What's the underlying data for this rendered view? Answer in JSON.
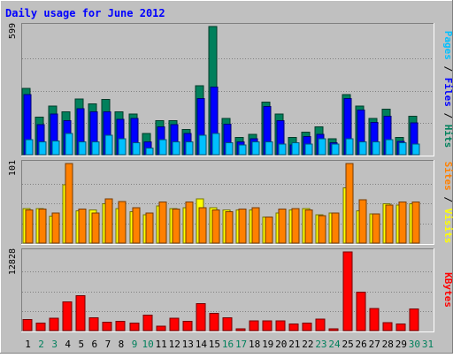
{
  "title": "Daily usage for June 2012",
  "colors": {
    "background": "#c0c0c0",
    "frame_light": "#ffffff",
    "frame_dark": "#808080",
    "title": "#0000ff",
    "hits": "#00805c",
    "files": "#0000ff",
    "pages": "#00c0ff",
    "visits": "#ffff00",
    "sites": "#ff8000",
    "kbytes": "#ff0000",
    "day_weekday": "#000000",
    "day_weekend": "#00805c"
  },
  "chart_data": [
    {
      "type": "bar",
      "name": "hits-files-pages",
      "ylabel_parts": [
        {
          "text": "Pages",
          "color_key": "pages"
        },
        {
          "text": " / ",
          "color_key": "day_weekday"
        },
        {
          "text": "Files",
          "color_key": "files"
        },
        {
          "text": " / ",
          "color_key": "day_weekday"
        },
        {
          "text": "Hits",
          "color_key": "hits"
        }
      ],
      "max_label": "599",
      "ylim": [
        0,
        599
      ],
      "categories": [
        "1",
        "2",
        "3",
        "4",
        "5",
        "6",
        "7",
        "8",
        "9",
        "10",
        "11",
        "12",
        "13",
        "14",
        "15",
        "16",
        "17",
        "18",
        "19",
        "20",
        "21",
        "22",
        "23",
        "24",
        "25",
        "26",
        "27",
        "28",
        "29",
        "30",
        "31"
      ],
      "series": [
        {
          "name": "Hits",
          "color_key": "hits",
          "values": [
            310,
            175,
            228,
            200,
            260,
            238,
            258,
            200,
            190,
            100,
            160,
            160,
            118,
            322,
            599,
            170,
            80,
            95,
            245,
            190,
            80,
            105,
            130,
            75,
            280,
            228,
            170,
            212,
            80,
            180,
            0
          ]
        },
        {
          "name": "Files",
          "color_key": "files",
          "values": [
            280,
            140,
            190,
            160,
            215,
            200,
            200,
            165,
            170,
            60,
            130,
            140,
            100,
            262,
            315,
            142,
            60,
            75,
            225,
            160,
            45,
            85,
            95,
            55,
            262,
            208,
            150,
            180,
            62,
            148,
            0
          ]
        },
        {
          "name": "Pages",
          "color_key": "pages",
          "values": [
            70,
            60,
            65,
            100,
            60,
            60,
            90,
            75,
            55,
            32,
            70,
            60,
            60,
            90,
            100,
            55,
            45,
            60,
            60,
            50,
            55,
            50,
            75,
            50,
            75,
            60,
            60,
            70,
            55,
            50,
            0
          ]
        }
      ]
    },
    {
      "type": "bar",
      "name": "visits-sites",
      "ylabel_parts": [
        {
          "text": "Sites",
          "color_key": "sites"
        },
        {
          "text": " / ",
          "color_key": "day_weekday"
        },
        {
          "text": "Visits",
          "color_key": "visits"
        }
      ],
      "max_label": "101",
      "ylim": [
        0,
        101
      ],
      "categories": [
        "1",
        "2",
        "3",
        "4",
        "5",
        "6",
        "7",
        "8",
        "9",
        "10",
        "11",
        "12",
        "13",
        "14",
        "15",
        "16",
        "17",
        "18",
        "19",
        "20",
        "21",
        "22",
        "23",
        "24",
        "25",
        "26",
        "27",
        "28",
        "29",
        "30",
        "31"
      ],
      "series": [
        {
          "name": "Visits",
          "color_key": "visits",
          "values": [
            44,
            44,
            34,
            74,
            41,
            42,
            50,
            44,
            40,
            36,
            47,
            44,
            45,
            56,
            45,
            42,
            42,
            42,
            33,
            38,
            42,
            44,
            36,
            38,
            70,
            41,
            37,
            50,
            48,
            50,
            0
          ]
        },
        {
          "name": "Sites",
          "color_key": "sites",
          "values": [
            42,
            43,
            38,
            101,
            43,
            38,
            56,
            53,
            45,
            38,
            52,
            43,
            52,
            45,
            42,
            40,
            43,
            45,
            33,
            43,
            44,
            42,
            35,
            38,
            101,
            55,
            37,
            48,
            52,
            52,
            0
          ]
        }
      ]
    },
    {
      "type": "bar",
      "name": "kbytes",
      "ylabel_parts": [
        {
          "text": "KBytes",
          "color_key": "kbytes"
        }
      ],
      "max_label": "12828",
      "ylim": [
        0,
        12828
      ],
      "categories": [
        "1",
        "2",
        "3",
        "4",
        "5",
        "6",
        "7",
        "8",
        "9",
        "10",
        "11",
        "12",
        "13",
        "14",
        "15",
        "16",
        "17",
        "18",
        "19",
        "20",
        "21",
        "22",
        "23",
        "24",
        "25",
        "26",
        "27",
        "28",
        "29",
        "30",
        "31"
      ],
      "series": [
        {
          "name": "KBytes",
          "color_key": "kbytes",
          "values": [
            1800,
            1200,
            2000,
            4700,
            5700,
            2100,
            1400,
            1500,
            1200,
            2500,
            700,
            2000,
            1500,
            4400,
            2800,
            2100,
            300,
            1600,
            1600,
            1600,
            1100,
            1200,
            1900,
            300,
            12828,
            6300,
            3600,
            1300,
            1100,
            3500,
            0
          ]
        }
      ]
    }
  ],
  "days": {
    "labels": [
      "1",
      "2",
      "3",
      "4",
      "5",
      "6",
      "7",
      "8",
      "9",
      "10",
      "11",
      "12",
      "13",
      "14",
      "15",
      "16",
      "17",
      "18",
      "19",
      "20",
      "21",
      "22",
      "23",
      "24",
      "25",
      "26",
      "27",
      "28",
      "29",
      "30",
      "31"
    ],
    "weekend_flags": [
      0,
      1,
      1,
      0,
      0,
      0,
      0,
      0,
      1,
      1,
      0,
      0,
      0,
      0,
      0,
      1,
      1,
      0,
      0,
      0,
      0,
      0,
      1,
      1,
      0,
      0,
      0,
      0,
      0,
      1,
      1
    ]
  }
}
